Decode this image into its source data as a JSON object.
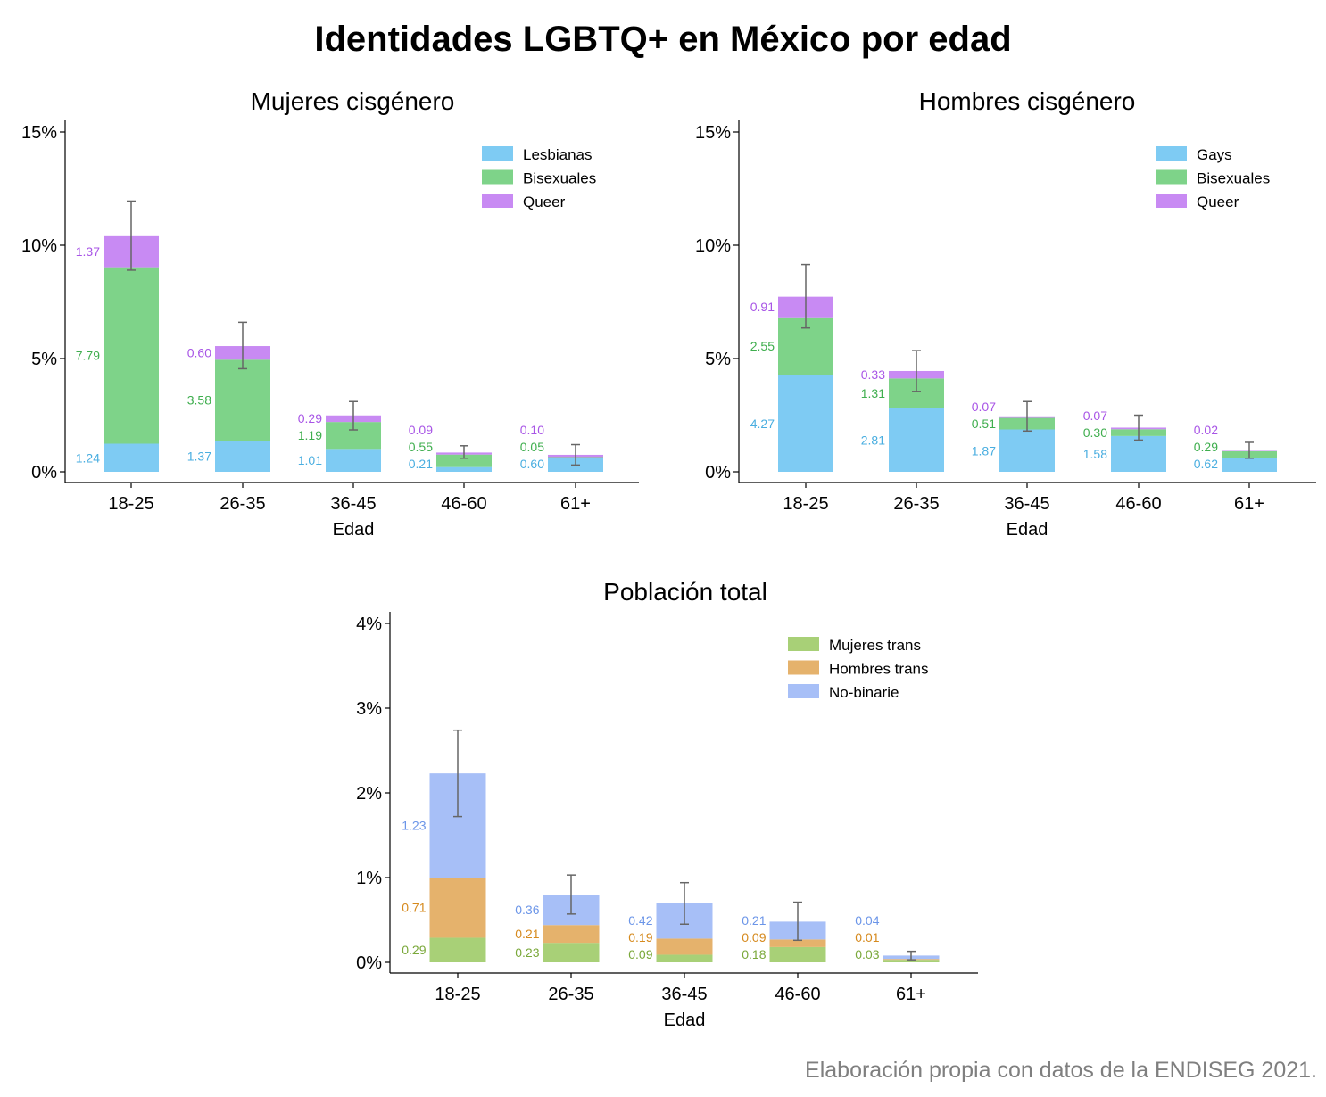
{
  "title": "Identidades LGBTQ+ en México por edad",
  "note": "Elaboración propia con datos de la ENDISEG 2021.",
  "chart_data": [
    {
      "type": "bar",
      "stacked": true,
      "title": "Mujeres cisgénero",
      "xlabel": "Edad",
      "ylabel": "",
      "ylim": [
        0,
        15
      ],
      "yticks": [
        "0%",
        "5%",
        "10%",
        "15%"
      ],
      "categories": [
        "18-25",
        "26-35",
        "36-45",
        "46-60",
        "61+"
      ],
      "legend_position": "top-right",
      "series": [
        {
          "name": "Lesbianas",
          "color": "#7ecbf3",
          "label_color": "#4aaee0",
          "values": [
            1.24,
            1.37,
            1.01,
            0.21,
            0.6
          ],
          "labels": [
            "1.24",
            "1.37",
            "1.01",
            "0.21",
            "0.60"
          ]
        },
        {
          "name": "Bisexuales",
          "color": "#7ed389",
          "label_color": "#3fae4e",
          "values": [
            7.79,
            3.58,
            1.19,
            0.55,
            0.05
          ],
          "labels": [
            "7.79",
            "3.58",
            "1.19",
            "0.55",
            "0.05"
          ]
        },
        {
          "name": "Queer",
          "color": "#c88af3",
          "label_color": "#a855e6",
          "values": [
            1.37,
            0.6,
            0.29,
            0.09,
            0.1
          ],
          "labels": [
            "1.37",
            "0.60",
            "0.29",
            "0.09",
            "0.10"
          ]
        }
      ],
      "error_bars": [
        [
          8.9,
          11.95
        ],
        [
          4.55,
          6.6
        ],
        [
          1.85,
          3.1
        ],
        [
          0.6,
          1.15
        ],
        [
          0.3,
          1.2
        ]
      ]
    },
    {
      "type": "bar",
      "stacked": true,
      "title": "Hombres cisgénero",
      "xlabel": "Edad",
      "ylabel": "",
      "ylim": [
        0,
        15
      ],
      "yticks": [
        "0%",
        "5%",
        "10%",
        "15%"
      ],
      "categories": [
        "18-25",
        "26-35",
        "36-45",
        "46-60",
        "61+"
      ],
      "legend_position": "top-right",
      "series": [
        {
          "name": "Gays",
          "color": "#7ecbf3",
          "label_color": "#4aaee0",
          "values": [
            4.27,
            2.81,
            1.87,
            1.58,
            0.62
          ],
          "labels": [
            "4.27",
            "2.81",
            "1.87",
            "1.58",
            "0.62"
          ]
        },
        {
          "name": "Bisexuales",
          "color": "#7ed389",
          "label_color": "#3fae4e",
          "values": [
            2.55,
            1.31,
            0.51,
            0.3,
            0.29
          ],
          "labels": [
            "2.55",
            "1.31",
            "0.51",
            "0.30",
            "0.29"
          ]
        },
        {
          "name": "Queer",
          "color": "#c88af3",
          "label_color": "#a855e6",
          "values": [
            0.91,
            0.33,
            0.07,
            0.07,
            0.02
          ],
          "labels": [
            "0.91",
            "0.33",
            "0.07",
            "0.07",
            "0.02"
          ]
        }
      ],
      "error_bars": [
        [
          6.35,
          9.15
        ],
        [
          3.55,
          5.35
        ],
        [
          1.8,
          3.1
        ],
        [
          1.4,
          2.5
        ],
        [
          0.6,
          1.3
        ]
      ]
    },
    {
      "type": "bar",
      "stacked": true,
      "title": "Población total",
      "xlabel": "Edad",
      "ylabel": "",
      "ylim": [
        0,
        4
      ],
      "yticks": [
        "0%",
        "1%",
        "2%",
        "3%",
        "4%"
      ],
      "categories": [
        "18-25",
        "26-35",
        "36-45",
        "46-60",
        "61+"
      ],
      "legend_position": "top-right",
      "series": [
        {
          "name": "Mujeres trans",
          "color": "#a8d077",
          "label_color": "#7aa83a",
          "values": [
            0.29,
            0.23,
            0.09,
            0.18,
            0.03
          ],
          "labels": [
            "0.29",
            "0.23",
            "0.09",
            "0.18",
            "0.03"
          ]
        },
        {
          "name": "Hombres trans",
          "color": "#e5b26c",
          "label_color": "#d68a1e",
          "values": [
            0.71,
            0.21,
            0.19,
            0.09,
            0.01
          ],
          "labels": [
            "0.71",
            "0.21",
            "0.19",
            "0.09",
            "0.01"
          ]
        },
        {
          "name": "No-binarie",
          "color": "#a7bff7",
          "label_color": "#6b95e8",
          "values": [
            1.23,
            0.36,
            0.42,
            0.21,
            0.04
          ],
          "labels": [
            "1.23",
            "0.36",
            "0.42",
            "0.21",
            "0.04"
          ]
        }
      ],
      "error_bars": [
        [
          1.72,
          2.74
        ],
        [
          0.57,
          1.03
        ],
        [
          0.45,
          0.94
        ],
        [
          0.26,
          0.71
        ],
        [
          0.03,
          0.13
        ]
      ]
    }
  ]
}
